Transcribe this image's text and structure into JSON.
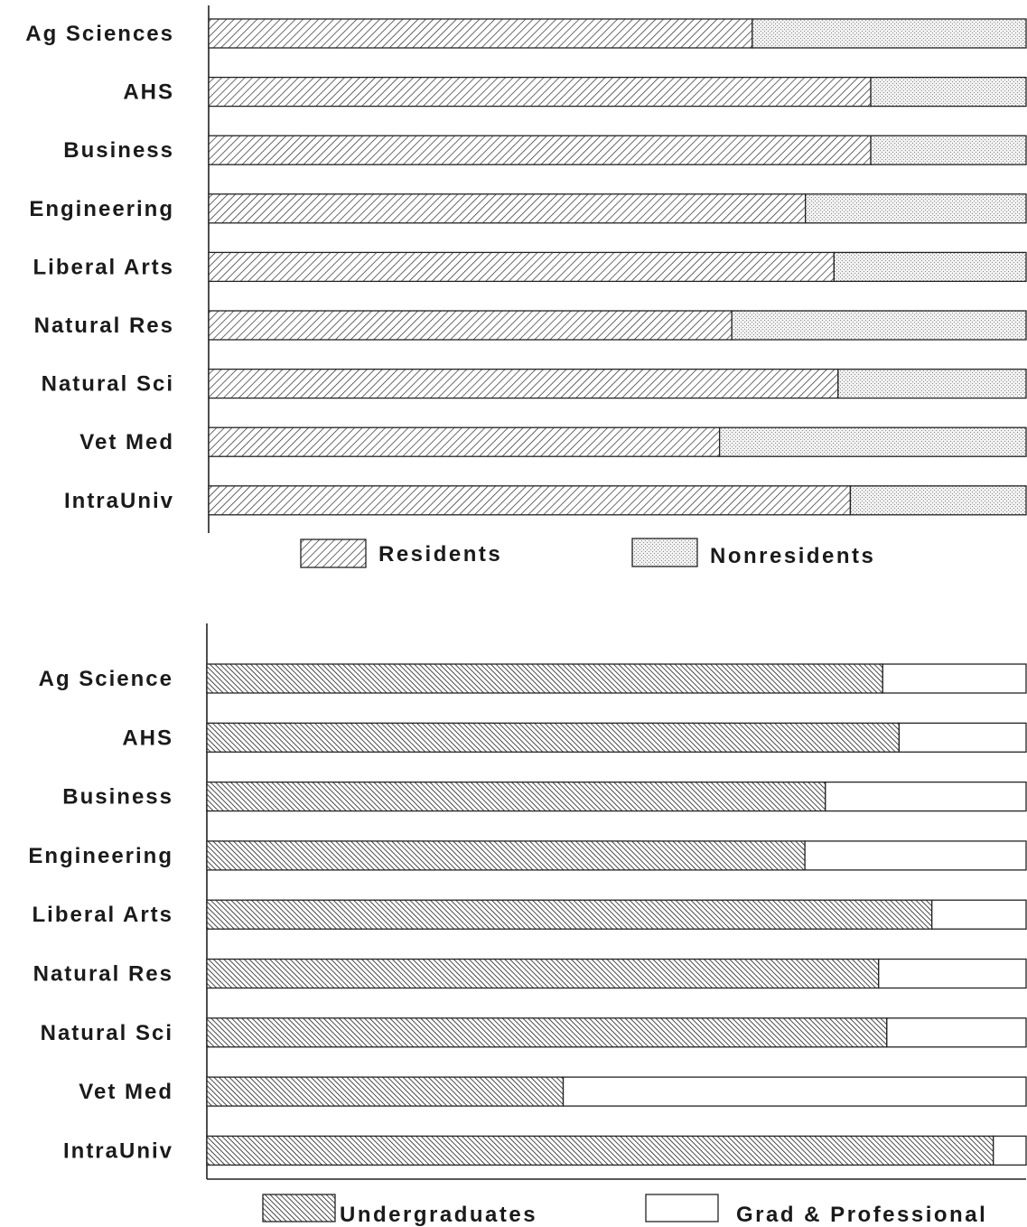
{
  "chart_data": [
    {
      "type": "bar",
      "stacked": "percent",
      "orientation": "horizontal",
      "categories": [
        "Ag Sciences",
        "AHS",
        "Business",
        "Engineering",
        "Liberal Arts",
        "Natural Res",
        "Natural Sci",
        "Vet Med",
        "IntraUniv"
      ],
      "series": [
        {
          "name": "Residents",
          "values": [
            66.5,
            81,
            81,
            73,
            76.5,
            64,
            77,
            62.5,
            78.5
          ],
          "pattern": "diagonal-hatch-wide",
          "color": "#333333"
        },
        {
          "name": "Nonresidents",
          "values": [
            33.5,
            19,
            19,
            27,
            23.5,
            36,
            23,
            37.5,
            21.5
          ],
          "pattern": "stipple",
          "color": "#e6e6e6"
        }
      ],
      "xlim": [
        0,
        100
      ],
      "xlabel": "",
      "ylabel": "",
      "grid": false,
      "legend_position": "bottom"
    },
    {
      "type": "bar",
      "stacked": "percent",
      "orientation": "horizontal",
      "categories": [
        "Ag Science",
        "AHS",
        "Business",
        "Engineering",
        "Liberal Arts",
        "Natural Res",
        "Natural Sci",
        "Vet Med",
        "IntraUniv"
      ],
      "series": [
        {
          "name": "Undergraduates",
          "values": [
            82.5,
            84.5,
            75.5,
            73,
            88.5,
            82,
            83,
            43.5,
            96
          ],
          "pattern": "diagonal-hatch-dense",
          "color": "#333333"
        },
        {
          "name": "Grad & Professional",
          "values": [
            17.5,
            15.5,
            24.5,
            27,
            11.5,
            18,
            17,
            56.5,
            4
          ],
          "pattern": "solid",
          "color": "#ffffff"
        }
      ],
      "xlim": [
        0,
        100
      ],
      "xlabel": "",
      "ylabel": "",
      "grid": false,
      "legend_position": "bottom"
    }
  ]
}
